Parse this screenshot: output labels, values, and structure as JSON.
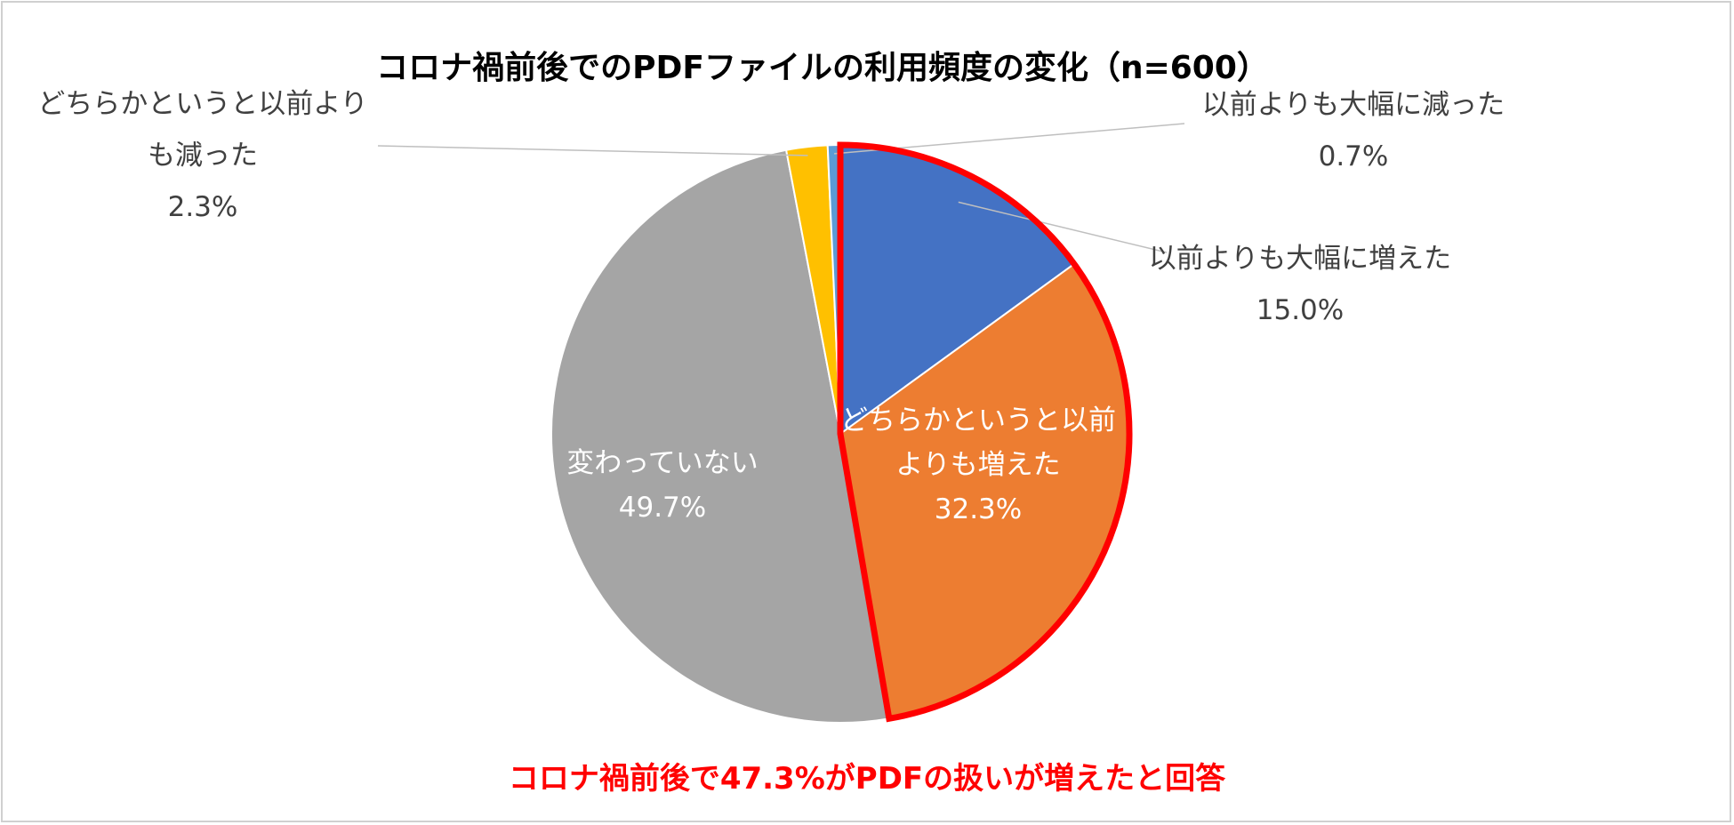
{
  "chart_data": {
    "type": "pie",
    "title": "コロナ禍前後でのPDFファイルの利用頻度の変化（n=600）",
    "slices": [
      {
        "label_lines": [
          "以前よりも大幅に増えた"
        ],
        "value": 15.0,
        "value_label": "15.0%",
        "color": "#4472C4",
        "label_side": "outside"
      },
      {
        "label_lines": [
          "どちらかというと以前",
          "よりも増えた"
        ],
        "value": 32.3,
        "value_label": "32.3%",
        "color": "#ED7D31",
        "label_side": "inside"
      },
      {
        "label_lines": [
          "変わっていない"
        ],
        "value": 49.7,
        "value_label": "49.7%",
        "color": "#A5A5A5",
        "label_side": "inside"
      },
      {
        "label_lines": [
          "どちらかというと以前より",
          "も減った"
        ],
        "value": 2.3,
        "value_label": "2.3%",
        "color": "#FFC000",
        "label_side": "outside"
      },
      {
        "label_lines": [
          "以前よりも大幅に減った"
        ],
        "value": 0.7,
        "value_label": "0.7%",
        "color": "#5B9BD5",
        "label_side": "outside"
      }
    ],
    "highlight": {
      "slices": [
        0,
        1
      ],
      "color": "#FF0000"
    },
    "legend": "none"
  },
  "footnote": {
    "text": "コロナ禍前後で47.3%がPDFの扱いが増えたと回答",
    "color": "#FF0000"
  }
}
